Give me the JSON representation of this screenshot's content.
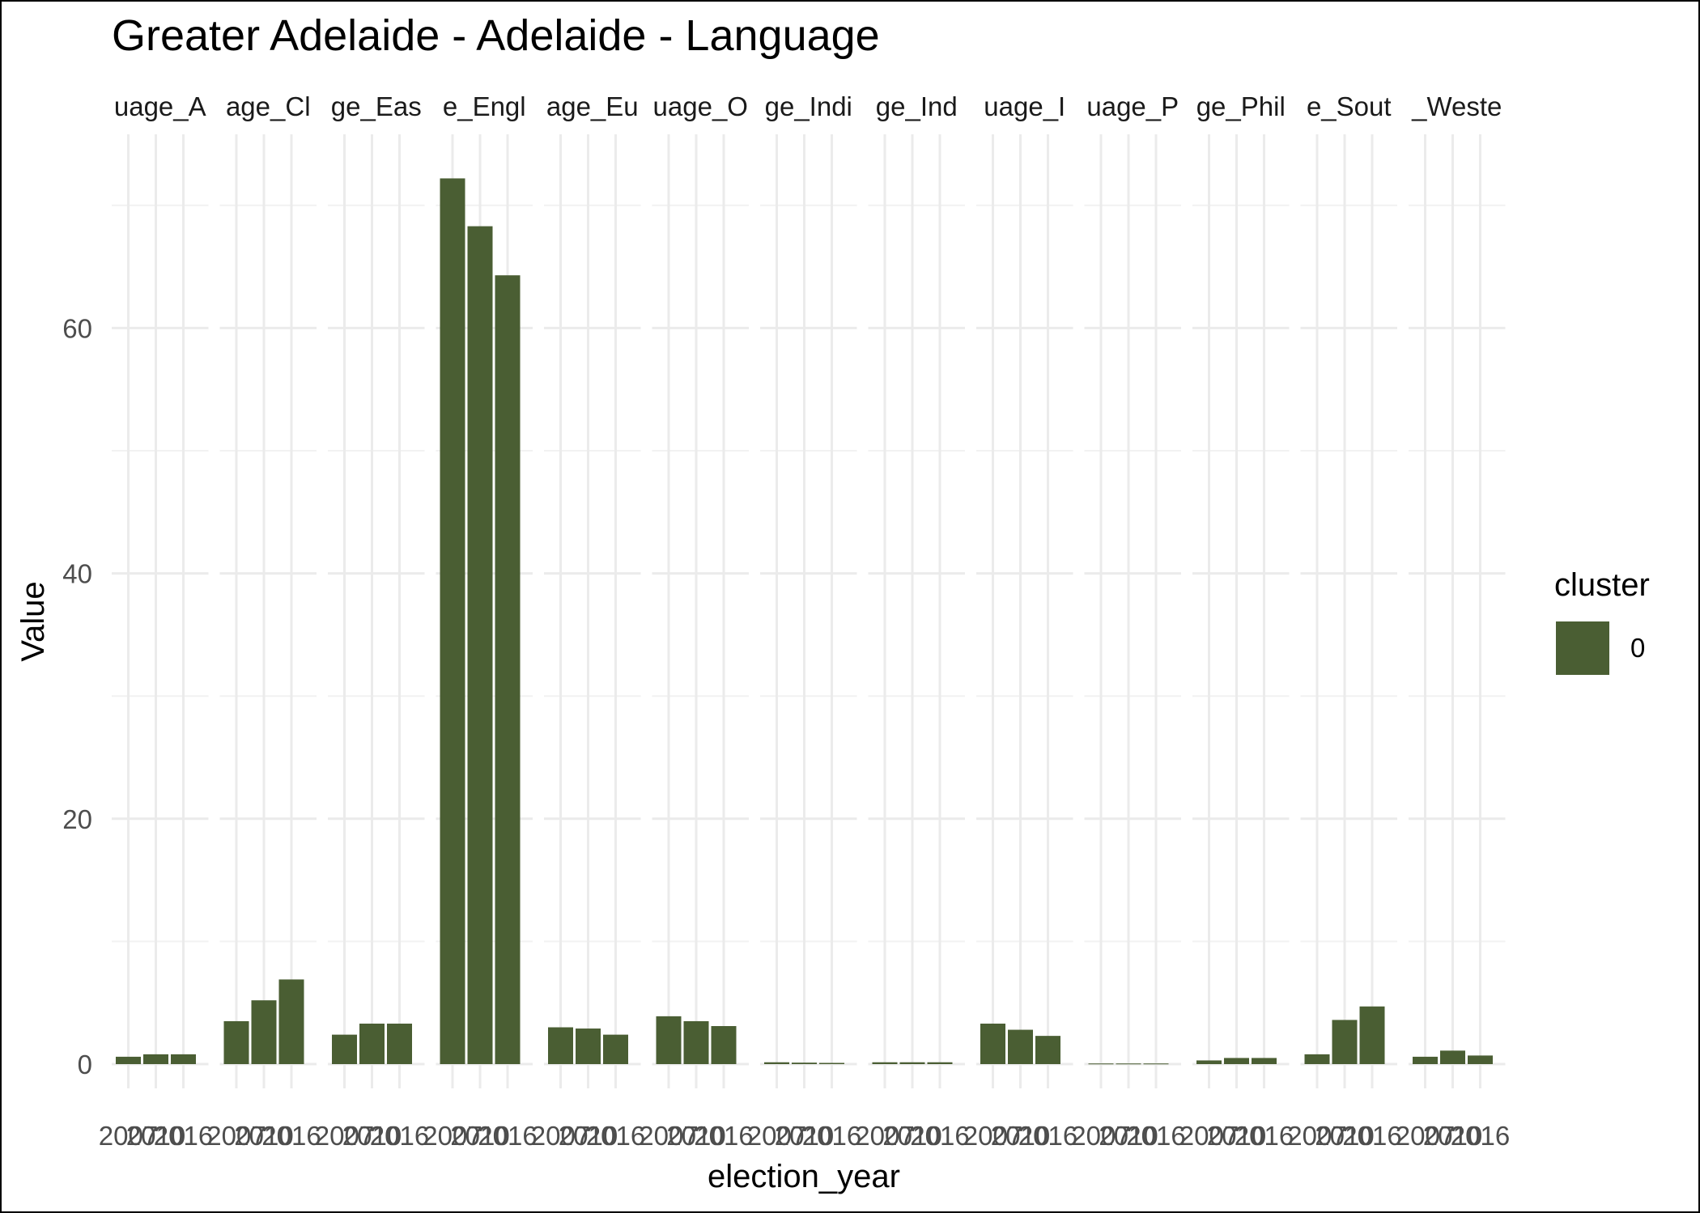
{
  "chart_data": {
    "type": "bar",
    "title": "Greater Adelaide - Adelaide - Language",
    "xlabel": "election_year",
    "ylabel": "Value",
    "ylim": [
      0,
      75.5
    ],
    "yticks": [
      0,
      20,
      40,
      60
    ],
    "x": [
      "2007",
      "2010",
      "2016"
    ],
    "x_tick_labels": [
      "2007",
      "2010",
      "2016"
    ],
    "grid": true,
    "legend": {
      "title": "cluster",
      "position": "right",
      "entries": [
        {
          "label": "0",
          "color": "#4a5e33"
        }
      ]
    },
    "facets": [
      {
        "strip_label": "uage_A",
        "values": [
          0.6,
          0.8,
          0.8
        ]
      },
      {
        "strip_label": "age_Cl",
        "values": [
          3.5,
          5.2,
          6.9
        ]
      },
      {
        "strip_label": "ge_Eas",
        "values": [
          2.4,
          3.3,
          3.3
        ]
      },
      {
        "strip_label": "e_Engl",
        "values": [
          72.2,
          68.3,
          64.3
        ]
      },
      {
        "strip_label": "age_Eu",
        "values": [
          3.0,
          2.9,
          2.4
        ]
      },
      {
        "strip_label": "uage_O",
        "values": [
          3.9,
          3.5,
          3.1
        ]
      },
      {
        "strip_label": "ge_Indi",
        "values": [
          0.15,
          0.12,
          0.1
        ]
      },
      {
        "strip_label": "ge_Ind",
        "values": [
          0.15,
          0.15,
          0.15
        ]
      },
      {
        "strip_label": "uage_I",
        "values": [
          3.3,
          2.8,
          2.3
        ]
      },
      {
        "strip_label": "uage_P",
        "values": [
          0.05,
          0.05,
          0.05
        ]
      },
      {
        "strip_label": "ge_Phil",
        "values": [
          0.3,
          0.5,
          0.5
        ]
      },
      {
        "strip_label": "e_Sout",
        "values": [
          0.8,
          3.6,
          4.7
        ]
      },
      {
        "strip_label": "_Weste",
        "values": [
          0.6,
          1.1,
          0.7
        ]
      }
    ]
  }
}
